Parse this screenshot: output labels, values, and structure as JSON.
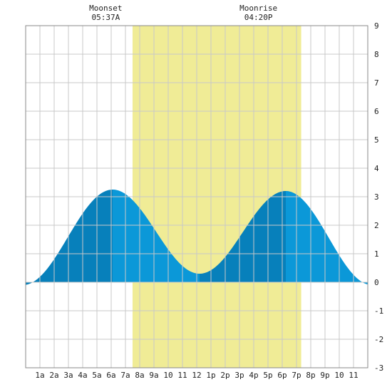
{
  "chart_data": {
    "type": "area",
    "title": "",
    "xlabel": "",
    "ylabel": "",
    "x_tick_labels": [
      "1a",
      "2a",
      "3a",
      "4a",
      "5a",
      "6a",
      "7a",
      "8a",
      "9a",
      "10",
      "11",
      "12",
      "1p",
      "2p",
      "3p",
      "4p",
      "5p",
      "6p",
      "7p",
      "8p",
      "9p",
      "10",
      "11"
    ],
    "xlim": [
      0,
      24
    ],
    "ylim": [
      -3,
      9
    ],
    "y_ticks": [
      -3,
      -2,
      -1,
      0,
      1,
      2,
      3,
      4,
      5,
      6,
      7,
      8,
      9
    ],
    "grid": true,
    "highlight_band": {
      "start": 7.5,
      "end": 19.33,
      "color": "#f0ec96"
    },
    "annotations": [
      {
        "id": "moonset",
        "label": "Moonset",
        "time": "05:37A",
        "x": 5.617
      },
      {
        "id": "moonrise",
        "label": "Moonrise",
        "time": "04:20P",
        "x": 16.333
      }
    ],
    "series": [
      {
        "extrema": [
          {
            "x": -0.2,
            "y": -0.1
          },
          {
            "x": 6.1,
            "y": 3.25
          },
          {
            "x": 12.2,
            "y": 0.3
          },
          {
            "x": 18.25,
            "y": 3.2
          },
          {
            "x": 24.3,
            "y": -0.1
          }
        ]
      }
    ],
    "colors": {
      "fill_light": "#0b98d8",
      "fill_dark": "#0780bb",
      "grid": "#c8c8c8",
      "frame": "#888888"
    }
  }
}
